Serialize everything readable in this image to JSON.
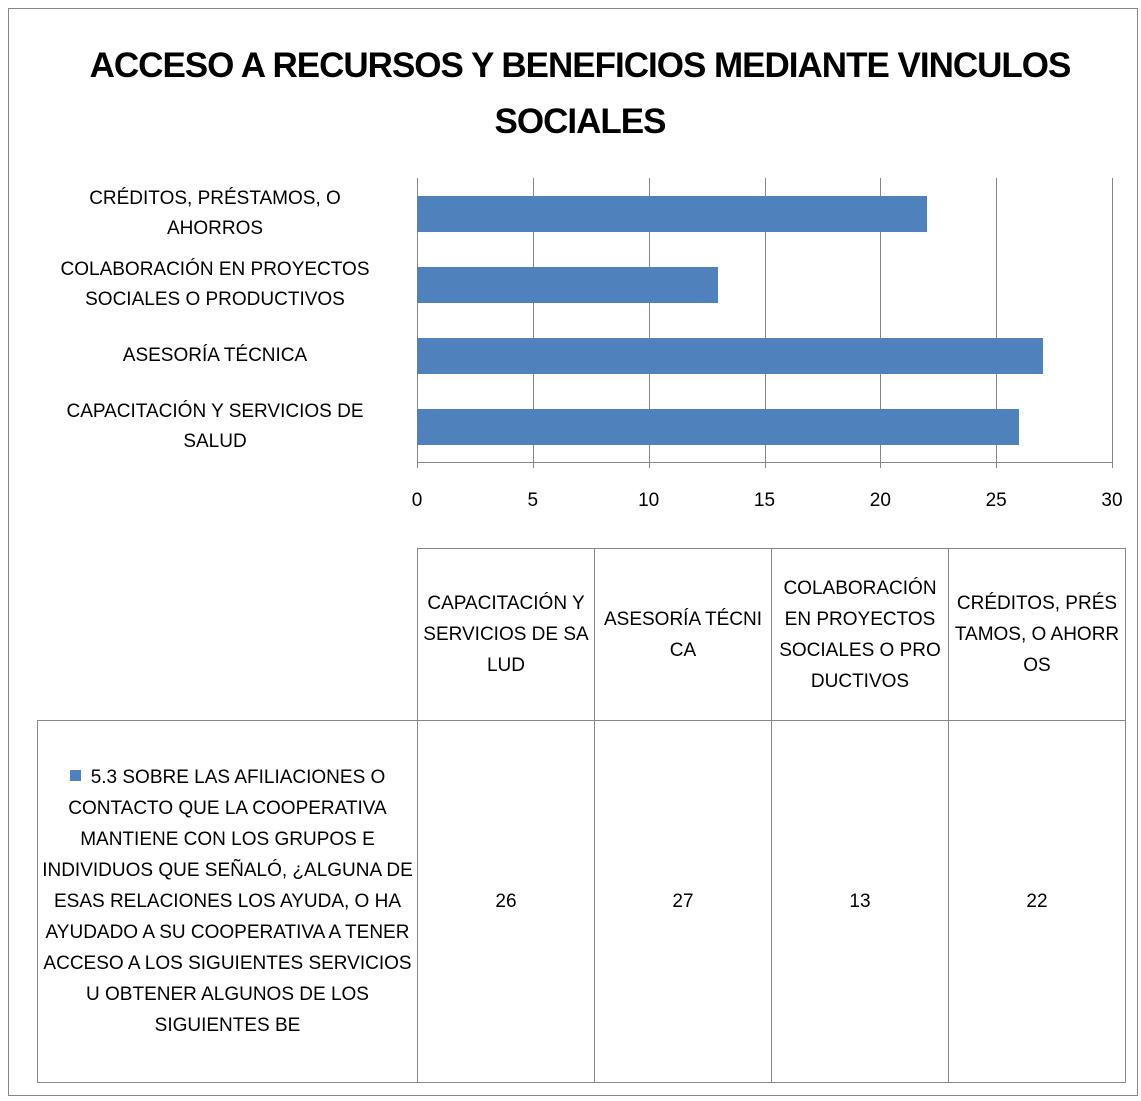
{
  "chart_data": {
    "type": "bar",
    "orientation": "horizontal",
    "title": "ACCESO A RECURSOS Y BENEFICIOS MEDIANTE VINCULOS SOCIALES",
    "categories": [
      "CAPACITACIÓN Y SERVICIOS DE SALUD",
      "ASESORÍA TÉCNICA",
      "COLABORACIÓN EN PROYECTOS SOCIALES O PRODUCTIVOS",
      "CRÉDITOS, PRÉSTAMOS, O AHORROS"
    ],
    "series": [
      {
        "name": "5.3 SOBRE LAS AFILIACIONES O CONTACTO QUE LA COOPERATIVA MANTIENE CON LOS GRUPOS E INDIVIDUOS QUE SEÑALÓ, ¿ALGUNA DE ESAS RELACIONES LOS AYUDA, O HA AYUDADO A SU COOPERATIVA  A TENER ACCESO A LOS SIGUIENTES SERVICIOS U OBTENER ALGUNOS DE LOS SIGUIENTES BE",
        "color": "#4f81bd",
        "values": [
          26,
          27,
          13,
          22
        ]
      }
    ],
    "xlim": [
      0,
      30
    ],
    "xticks": [
      0,
      5,
      10,
      15,
      20,
      25,
      30
    ],
    "grid": true,
    "data_table": true
  }
}
